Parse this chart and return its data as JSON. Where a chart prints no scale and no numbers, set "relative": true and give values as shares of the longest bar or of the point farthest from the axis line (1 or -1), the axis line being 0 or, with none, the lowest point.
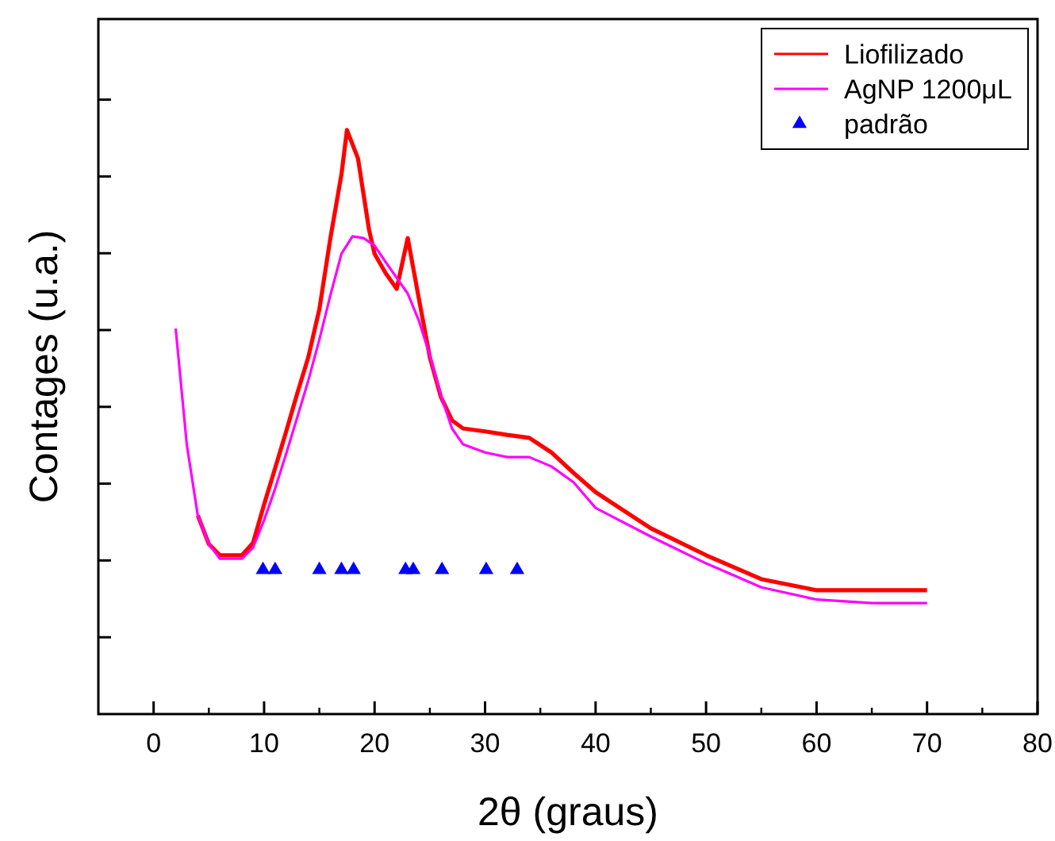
{
  "chart_data": {
    "type": "line",
    "relative": true,
    "xlabel": "2θ (graus)",
    "ylabel": "Contages (u.a.)",
    "xlim": [
      -5,
      80
    ],
    "xticks": [
      0,
      10,
      20,
      30,
      40,
      50,
      60,
      70,
      80
    ],
    "legend": "top right",
    "grid": false,
    "marker": "none",
    "line_style": "solid",
    "series": [
      {
        "name": "Liofilizado",
        "color": "#ff0000",
        "x": [
          4,
          5,
          6,
          8,
          9,
          10,
          11,
          12,
          13,
          14,
          15,
          16,
          17,
          17.5,
          18.5,
          19.5,
          20,
          21,
          22,
          23,
          24,
          25,
          26,
          27,
          28,
          30,
          32,
          34,
          36,
          38,
          40,
          45,
          50,
          55,
          60,
          65,
          70
        ],
        "values": [
          0.34,
          0.291,
          0.272,
          0.272,
          0.293,
          0.359,
          0.421,
          0.484,
          0.549,
          0.611,
          0.693,
          0.815,
          0.924,
          1,
          0.951,
          0.829,
          0.788,
          0.755,
          0.728,
          0.815,
          0.712,
          0.611,
          0.543,
          0.503,
          0.489,
          0.484,
          0.478,
          0.473,
          0.448,
          0.413,
          0.38,
          0.318,
          0.272,
          0.231,
          0.212,
          0.212,
          0.212
        ]
      },
      {
        "name": "AgNP 1200μL",
        "color": "#ff00ff",
        "x": [
          2,
          3,
          4,
          5,
          6,
          8,
          9,
          10,
          11,
          12,
          13,
          14,
          15,
          16,
          17,
          18,
          19,
          20,
          21,
          22,
          23,
          24,
          25,
          26,
          27,
          28,
          30,
          32,
          34,
          36,
          38,
          40,
          45,
          50,
          55,
          60,
          65,
          70
        ],
        "values": [
          0.66,
          0.462,
          0.34,
          0.291,
          0.266,
          0.266,
          0.285,
          0.332,
          0.386,
          0.446,
          0.508,
          0.571,
          0.641,
          0.717,
          0.788,
          0.818,
          0.815,
          0.802,
          0.774,
          0.747,
          0.72,
          0.674,
          0.614,
          0.546,
          0.489,
          0.462,
          0.448,
          0.44,
          0.44,
          0.424,
          0.397,
          0.353,
          0.304,
          0.258,
          0.217,
          0.196,
          0.19,
          0.19
        ]
      },
      {
        "name": "padrão",
        "type": "scatter",
        "marker": "triangle",
        "color": "#0000ff",
        "x": [
          9.9,
          11.0,
          15.0,
          17.0,
          18.1,
          22.8,
          23.5,
          26.1,
          30.1,
          32.9
        ],
        "values": [
          0.247,
          0.247,
          0.247,
          0.247,
          0.247,
          0.247,
          0.247,
          0.247,
          0.247,
          0.247
        ]
      }
    ]
  }
}
